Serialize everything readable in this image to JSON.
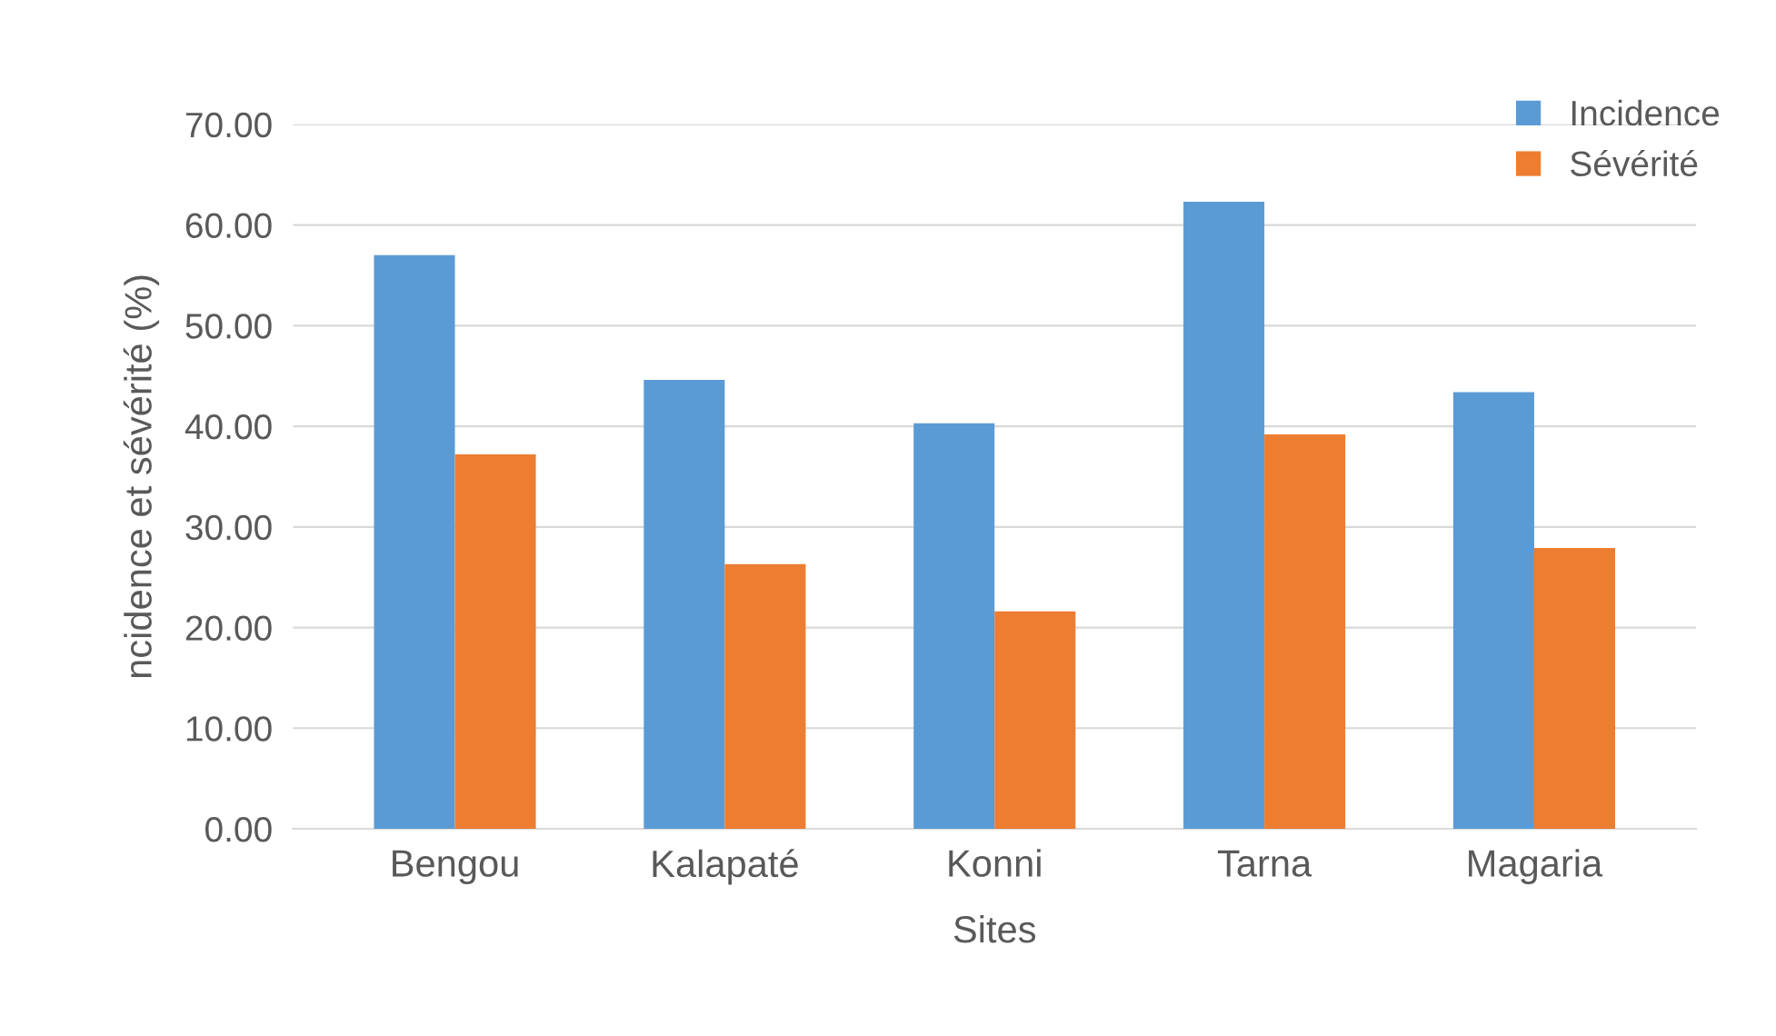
{
  "chart_data": {
    "type": "bar",
    "xlabel": "Sites",
    "ylabel": "ncidence et sévérité (%)",
    "categories": [
      "Bengou",
      "Kalapaté",
      "Konni",
      "Tarna",
      "Magaria"
    ],
    "series": [
      {
        "name": "Incidence",
        "color": "#5b9bd5",
        "values": [
          57.0,
          44.6,
          40.3,
          62.3,
          43.4
        ]
      },
      {
        "name": "Sévérité",
        "color": "#ed7d31",
        "values": [
          37.2,
          26.3,
          21.6,
          39.2,
          27.9
        ]
      }
    ],
    "ylim": [
      0,
      70
    ],
    "yticks": [
      {
        "value": 0,
        "label": "0.00"
      },
      {
        "value": 10,
        "label": "10.00"
      },
      {
        "value": 20,
        "label": "20.00"
      },
      {
        "value": 30,
        "label": "30.00"
      },
      {
        "value": 40,
        "label": "40.00"
      },
      {
        "value": 50,
        "label": "50.00"
      },
      {
        "value": 60,
        "label": "60.00"
      },
      {
        "value": 70,
        "label": "70.00"
      }
    ],
    "grid": "y",
    "legend": "top right"
  }
}
